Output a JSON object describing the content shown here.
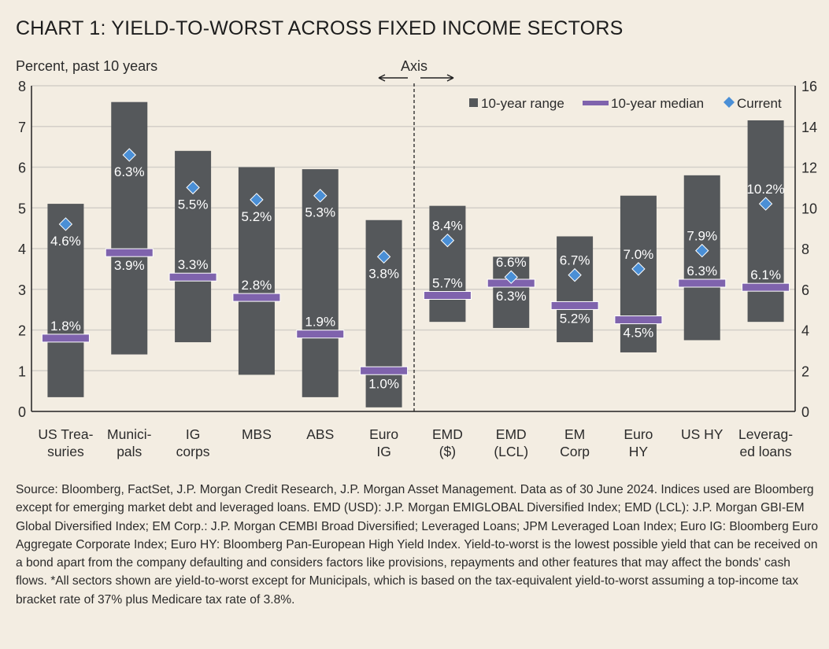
{
  "title": "CHART 1: YIELD-TO-WORST ACROSS FIXED INCOME SECTORS",
  "chart_data": {
    "type": "bar",
    "subtitle": "Percent, past 10 years",
    "axis_note": "Axis",
    "left_axis": {
      "range": [
        0,
        8
      ],
      "ticks": [
        "0",
        "1",
        "2",
        "3",
        "4",
        "5",
        "6",
        "7",
        "8"
      ]
    },
    "right_axis": {
      "range": [
        0,
        16
      ],
      "ticks": [
        "0",
        "2",
        "4",
        "6",
        "8",
        "10",
        "12",
        "14",
        "16"
      ]
    },
    "grid": true,
    "legend": {
      "placement": "top-right",
      "entries": [
        "10-year range",
        "10-year median",
        "Current"
      ]
    },
    "colors": {
      "range": "#55585b",
      "median": "#7f63ad",
      "current": "#4a8fd6"
    },
    "categories": [
      {
        "label": [
          "US Trea-",
          "suries"
        ],
        "axis": "left",
        "low": 0.35,
        "high": 5.1,
        "median": 1.8,
        "current": 4.6,
        "median_label": "1.8%",
        "current_label": "4.6%"
      },
      {
        "label": [
          "Munici-",
          "pals"
        ],
        "axis": "left",
        "low": 1.4,
        "high": 7.6,
        "median": 3.9,
        "current": 6.3,
        "median_label": "3.9%",
        "current_label": "6.3%"
      },
      {
        "label": [
          "IG",
          "corps"
        ],
        "axis": "left",
        "low": 1.7,
        "high": 6.4,
        "median": 3.3,
        "current": 5.5,
        "median_label": "3.3%",
        "current_label": "5.5%"
      },
      {
        "label": [
          "MBS"
        ],
        "axis": "left",
        "low": 0.9,
        "high": 6.0,
        "median": 2.8,
        "current": 5.2,
        "median_label": "2.8%",
        "current_label": "5.2%"
      },
      {
        "label": [
          "ABS"
        ],
        "axis": "left",
        "low": 0.35,
        "high": 5.95,
        "median": 1.9,
        "current": 5.3,
        "median_label": "1.9%",
        "current_label": "5.3%"
      },
      {
        "label": [
          "Euro",
          "IG"
        ],
        "axis": "left",
        "low": 0.1,
        "high": 4.7,
        "median": 1.0,
        "current": 3.8,
        "median_label": "1.0%",
        "current_label": "3.8%"
      },
      {
        "label": [
          "EMD",
          "($)"
        ],
        "axis": "right",
        "low": 4.4,
        "high": 10.1,
        "median": 5.7,
        "current": 8.4,
        "median_label": "5.7%",
        "current_label": "8.4%"
      },
      {
        "label": [
          "EMD",
          "(LCL)"
        ],
        "axis": "right",
        "low": 4.1,
        "high": 7.6,
        "median": 6.3,
        "current": 6.6,
        "median_label": "6.3%",
        "current_label": "6.6%"
      },
      {
        "label": [
          "EM",
          "Corp"
        ],
        "axis": "right",
        "low": 3.4,
        "high": 8.6,
        "median": 5.2,
        "current": 6.7,
        "median_label": "5.2%",
        "current_label": "6.7%"
      },
      {
        "label": [
          "Euro",
          "HY"
        ],
        "axis": "right",
        "low": 2.9,
        "high": 10.6,
        "median": 4.5,
        "current": 7.0,
        "median_label": "4.5%",
        "current_label": "7.0%"
      },
      {
        "label": [
          "US HY"
        ],
        "axis": "right",
        "low": 3.5,
        "high": 11.6,
        "median": 6.3,
        "current": 7.9,
        "median_label": "6.3%",
        "current_label": "7.9%"
      },
      {
        "label": [
          "Leverag-",
          "ed loans"
        ],
        "axis": "right",
        "low": 4.4,
        "high": 14.3,
        "median": 6.1,
        "current": 10.2,
        "median_label": "6.1%",
        "current_label": "10.2%"
      }
    ]
  },
  "source_note": "Source: Bloomberg, FactSet, J.P. Morgan Credit Research, J.P. Morgan Asset Management.  Data as of 30 June 2024. Indices used are Bloomberg except for emerging market debt and leveraged loans. EMD (USD): J.P. Morgan EMIGLOBAL Diversified Index; EMD (LCL): J.P. Morgan GBI-EM Global Diversified Index; EM Corp.: J.P. Morgan CEMBI Broad Diversified; Leveraged Loans; JPM Leveraged Loan Index; Euro IG: Bloomberg Euro Aggregate Corporate Index; Euro HY: Bloomberg Pan-European High Yield Index. Yield-to-worst is the lowest possible yield that can be received on a bond apart from the company defaulting and considers factors like provisions, repayments and other features that may affect the bonds' cash flows. *All sectors shown are yield-to-worst except for Municipals, which is based on the tax-equivalent yield-to-worst assuming a top-income tax bracket rate of 37% plus Medicare tax rate of 3.8%."
}
